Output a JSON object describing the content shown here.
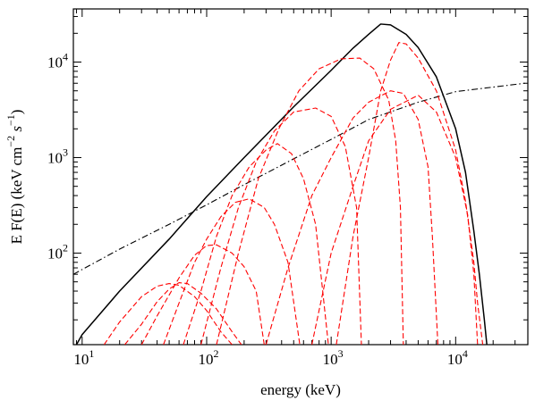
{
  "chart_data": {
    "type": "line",
    "xlabel": "energy (keV)",
    "ylabel_parts": [
      "E F(E) (keV cm",
      "−2",
      " s",
      "−1",
      ")"
    ],
    "x_scale": "log",
    "y_scale": "log",
    "xlim": [
      8.5,
      38000
    ],
    "ylim": [
      11,
      36000
    ],
    "x_ticks": [
      {
        "value": 10,
        "base": "10",
        "exp": "1"
      },
      {
        "value": 100,
        "base": "10",
        "exp": "2"
      },
      {
        "value": 1000,
        "base": "10",
        "exp": "3"
      },
      {
        "value": 10000,
        "base": "10",
        "exp": "4"
      }
    ],
    "y_ticks": [
      {
        "value": 100,
        "base": "10",
        "exp": "2"
      },
      {
        "value": 1000,
        "base": "10",
        "exp": "3"
      },
      {
        "value": 10000,
        "base": "10",
        "exp": "4"
      }
    ],
    "series": [
      {
        "style": "solid",
        "color": "#000000",
        "points": [
          [
            9,
            11
          ],
          [
            10,
            14
          ],
          [
            20,
            40
          ],
          [
            50,
            140
          ],
          [
            100,
            390
          ],
          [
            200,
            1000
          ],
          [
            500,
            3400
          ],
          [
            1000,
            8200
          ],
          [
            1500,
            14000
          ],
          [
            2000,
            19500
          ],
          [
            2500,
            25000
          ],
          [
            3000,
            24500
          ],
          [
            4000,
            19500
          ],
          [
            5000,
            14200
          ],
          [
            7000,
            7000
          ],
          [
            10000,
            2000
          ],
          [
            12000,
            700
          ],
          [
            14000,
            170
          ],
          [
            15500,
            60
          ],
          [
            17000,
            20
          ],
          [
            17800,
            11
          ]
        ]
      },
      {
        "style": "dash-dot",
        "color": "#000000",
        "points": [
          [
            8.5,
            60
          ],
          [
            20,
            110
          ],
          [
            50,
            200
          ],
          [
            100,
            320
          ],
          [
            200,
            520
          ],
          [
            500,
            970
          ],
          [
            1000,
            1550
          ],
          [
            2000,
            2500
          ],
          [
            5000,
            3800
          ],
          [
            10000,
            4900
          ],
          [
            36000,
            6000
          ]
        ]
      },
      {
        "style": "dashed",
        "color": "#ff0000",
        "points": [
          [
            15,
            11
          ],
          [
            20,
            19
          ],
          [
            30,
            35
          ],
          [
            40,
            45
          ],
          [
            50,
            48
          ],
          [
            60,
            46
          ],
          [
            80,
            35
          ],
          [
            100,
            25
          ],
          [
            130,
            15
          ],
          [
            160,
            11
          ]
        ]
      },
      {
        "style": "dashed",
        "color": "#ff0000",
        "points": [
          [
            22,
            11
          ],
          [
            30,
            18
          ],
          [
            40,
            31
          ],
          [
            50,
            42
          ],
          [
            60,
            49
          ],
          [
            70,
            48
          ],
          [
            90,
            38
          ],
          [
            120,
            26
          ],
          [
            160,
            15
          ],
          [
            190,
            11
          ]
        ]
      },
      {
        "style": "dashed",
        "color": "#ff0000",
        "points": [
          [
            30,
            11
          ],
          [
            40,
            22
          ],
          [
            60,
            55
          ],
          [
            80,
            95
          ],
          [
            100,
            120
          ],
          [
            120,
            122
          ],
          [
            160,
            100
          ],
          [
            200,
            72
          ],
          [
            250,
            40
          ],
          [
            290,
            11
          ]
        ]
      },
      {
        "style": "dashed",
        "color": "#ff0000",
        "points": [
          [
            45,
            11
          ],
          [
            60,
            30
          ],
          [
            80,
            80
          ],
          [
            100,
            140
          ],
          [
            130,
            240
          ],
          [
            170,
            340
          ],
          [
            220,
            370
          ],
          [
            290,
            300
          ],
          [
            350,
            200
          ],
          [
            450,
            80
          ],
          [
            560,
            11
          ]
        ]
      },
      {
        "style": "dashed",
        "color": "#ff0000",
        "points": [
          [
            65,
            11
          ],
          [
            90,
            40
          ],
          [
            120,
            150
          ],
          [
            160,
            400
          ],
          [
            220,
            800
          ],
          [
            300,
            1200
          ],
          [
            370,
            1400
          ],
          [
            480,
            1100
          ],
          [
            600,
            600
          ],
          [
            750,
            200
          ],
          [
            950,
            11
          ]
        ]
      },
      {
        "style": "dashed",
        "color": "#ff0000",
        "points": [
          [
            90,
            11
          ],
          [
            130,
            70
          ],
          [
            180,
            300
          ],
          [
            250,
            900
          ],
          [
            350,
            1900
          ],
          [
            500,
            3000
          ],
          [
            750,
            3300
          ],
          [
            1000,
            2700
          ],
          [
            1300,
            1300
          ],
          [
            1600,
            300
          ],
          [
            1750,
            11
          ]
        ]
      },
      {
        "style": "dashed",
        "color": "#ff0000",
        "points": [
          [
            120,
            11
          ],
          [
            180,
            100
          ],
          [
            260,
            600
          ],
          [
            380,
            2000
          ],
          [
            550,
            5000
          ],
          [
            800,
            8500
          ],
          [
            1200,
            10800
          ],
          [
            1700,
            11000
          ],
          [
            2200,
            8500
          ],
          [
            2900,
            4000
          ],
          [
            3300,
            1500
          ],
          [
            3600,
            300
          ],
          [
            3800,
            11
          ]
        ]
      },
      {
        "style": "dashed",
        "color": "#ff0000",
        "points": [
          [
            300,
            11
          ],
          [
            450,
            70
          ],
          [
            700,
            400
          ],
          [
            1000,
            1000
          ],
          [
            1500,
            2600
          ],
          [
            2000,
            3800
          ],
          [
            3000,
            5000
          ],
          [
            3800,
            4700
          ],
          [
            5000,
            2500
          ],
          [
            6000,
            800
          ],
          [
            6500,
            150
          ],
          [
            7200,
            11
          ]
        ]
      },
      {
        "style": "dashed",
        "color": "#ff0000",
        "points": [
          [
            700,
            11
          ],
          [
            1000,
            100
          ],
          [
            1500,
            500
          ],
          [
            2000,
            1500
          ],
          [
            3000,
            3200
          ],
          [
            5000,
            4500
          ],
          [
            7000,
            3000
          ],
          [
            10000,
            1000
          ],
          [
            12500,
            250
          ],
          [
            14000,
            60
          ],
          [
            15000,
            11
          ]
        ]
      },
      {
        "style": "dashed",
        "color": "#ff0000",
        "points": [
          [
            1100,
            11
          ],
          [
            1500,
            150
          ],
          [
            2000,
            1000
          ],
          [
            2500,
            5000
          ],
          [
            3000,
            10500
          ],
          [
            3500,
            16000
          ],
          [
            4000,
            15500
          ],
          [
            5000,
            11000
          ],
          [
            7000,
            5000
          ],
          [
            10000,
            1200
          ],
          [
            12000,
            350
          ],
          [
            14000,
            80
          ],
          [
            15000,
            30
          ],
          [
            16500,
            11
          ]
        ]
      }
    ]
  }
}
